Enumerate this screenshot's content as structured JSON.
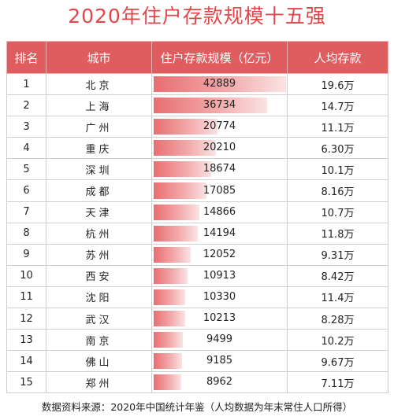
{
  "title": "2020年住户存款规模十五强",
  "header": {
    "rank": "排名",
    "city": "城市",
    "deposit": "住户存款规模（亿元）",
    "per_capita": "人均存款"
  },
  "footer": "数据资料来源：2020年中国统计年鉴（人均数据为年末常住人口所得）",
  "colors": {
    "title": "#e2474a",
    "header_bg": "#e05d5f",
    "bar_start": "#e86e71",
    "bar_end": "#fbe3e3"
  },
  "chart_data": {
    "type": "table",
    "title": "2020年住户存款规模十五强",
    "columns": [
      "排名",
      "城市",
      "住户存款规模（亿元）",
      "人均存款"
    ],
    "max_value": 42889,
    "rows": [
      {
        "rank": "1",
        "city": "北京",
        "value": 42889,
        "value_label": "42889",
        "per_capita": "19.6万"
      },
      {
        "rank": "2",
        "city": "上海",
        "value": 36734,
        "value_label": "36734",
        "per_capita": "14.7万"
      },
      {
        "rank": "3",
        "city": "广州",
        "value": 20774,
        "value_label": "20774",
        "per_capita": "11.1万"
      },
      {
        "rank": "4",
        "city": "重庆",
        "value": 20210,
        "value_label": "20210",
        "per_capita": "6.30万"
      },
      {
        "rank": "5",
        "city": "深圳",
        "value": 18674,
        "value_label": "18674",
        "per_capita": "10.1万"
      },
      {
        "rank": "6",
        "city": "成都",
        "value": 17085,
        "value_label": "17085",
        "per_capita": "8.16万"
      },
      {
        "rank": "7",
        "city": "天津",
        "value": 14866,
        "value_label": "14866",
        "per_capita": "10.7万"
      },
      {
        "rank": "8",
        "city": "杭州",
        "value": 14194,
        "value_label": "14194",
        "per_capita": "11.8万"
      },
      {
        "rank": "9",
        "city": "苏州",
        "value": 12052,
        "value_label": "12052",
        "per_capita": "9.31万"
      },
      {
        "rank": "10",
        "city": "西安",
        "value": 10913,
        "value_label": "10913",
        "per_capita": "8.42万"
      },
      {
        "rank": "11",
        "city": "沈阳",
        "value": 10330,
        "value_label": "10330",
        "per_capita": "11.4万"
      },
      {
        "rank": "12",
        "city": "武汉",
        "value": 10213,
        "value_label": "10213",
        "per_capita": "8.28万"
      },
      {
        "rank": "13",
        "city": "南京",
        "value": 9499,
        "value_label": "9499",
        "per_capita": "10.2万"
      },
      {
        "rank": "14",
        "city": "佛山",
        "value": 9185,
        "value_label": "9185",
        "per_capita": "9.67万"
      },
      {
        "rank": "15",
        "city": "郑州",
        "value": 8962,
        "value_label": "8962",
        "per_capita": "7.11万"
      }
    ]
  }
}
